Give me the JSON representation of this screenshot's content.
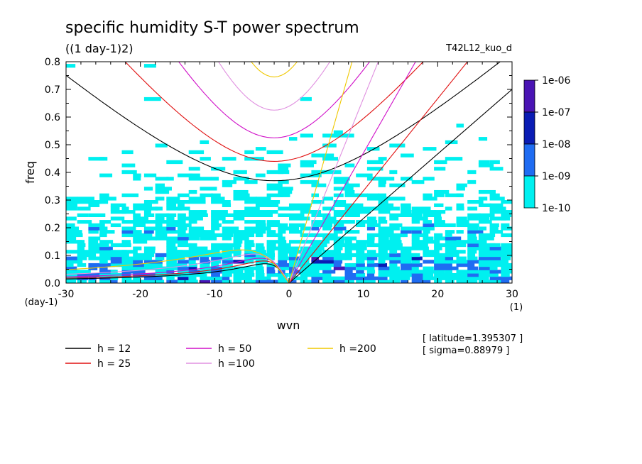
{
  "chart_data": {
    "type": "contour",
    "title": "specific humidity S-T power spectrum",
    "subtitle": "((1 day-1)2)",
    "run_label": "T42L12_kuo_d",
    "xlabel": "wvn",
    "ylabel": "freq",
    "x_unit": "(1)",
    "y_unit": "(day-1)",
    "xlim": [
      -30,
      30
    ],
    "ylim": [
      0,
      0.8
    ],
    "x_ticks": [
      -30,
      -20,
      -10,
      0,
      10,
      20,
      30
    ],
    "x_tick_labels": [
      "-30",
      "-20",
      "-10",
      "0",
      "10",
      "20",
      "30"
    ],
    "y_ticks": [
      0,
      0.1,
      0.2,
      0.3,
      0.4,
      0.5,
      0.6,
      0.7,
      0.8
    ],
    "y_tick_labels": [
      "0.0",
      "0.1",
      "0.2",
      "0.3",
      "0.4",
      "0.5",
      "0.6",
      "0.7",
      "0.8"
    ],
    "colorbar": {
      "labels": [
        "1e-06",
        "1e-07",
        "1e-08",
        "1e-09",
        "1e-10"
      ],
      "colors": [
        "#4a14b4",
        "#0a1cb4",
        "#1f6cf2",
        "#00f0f0"
      ]
    },
    "legend_entries": [
      {
        "label": "h = 12",
        "color": "#000000"
      },
      {
        "label": "h = 25",
        "color": "#e01010"
      },
      {
        "label": "h = 50",
        "color": "#d010c8"
      },
      {
        "label": "h =100",
        "color": "#e090e0"
      },
      {
        "label": "h =200",
        "color": "#f0c800"
      }
    ],
    "annotations": [
      "[ latitude=1.395307 ]",
      "[ sigma=0.88979 ]"
    ],
    "dispersion_curves": {
      "inertia_gravity_min_freq": [
        {
          "h": 12,
          "min_freq": 0.37,
          "at_wvn": -2
        },
        {
          "h": 25,
          "min_freq": 0.44,
          "at_wvn": -2
        },
        {
          "h": 50,
          "min_freq": 0.525,
          "at_wvn": -2
        },
        {
          "h": 100,
          "min_freq": 0.625,
          "at_wvn": -2
        },
        {
          "h": 200,
          "min_freq": 0.745,
          "at_wvn": -2
        }
      ],
      "kelvin_freq_at_wvn_30": [
        {
          "h": 12,
          "freq": 0.7
        },
        {
          "h": 25,
          "freq": 1.0
        },
        {
          "h": 50,
          "freq": 1.41
        },
        {
          "h": 100,
          "freq": 2.0
        },
        {
          "h": 200,
          "freq": 2.83
        }
      ],
      "rossby_peak_freq": [
        {
          "h": 12,
          "freq": 0.07
        },
        {
          "h": 25,
          "freq": 0.08
        },
        {
          "h": 50,
          "freq": 0.09
        },
        {
          "h": 100,
          "freq": 0.105
        },
        {
          "h": 200,
          "freq": 0.12
        }
      ]
    }
  }
}
